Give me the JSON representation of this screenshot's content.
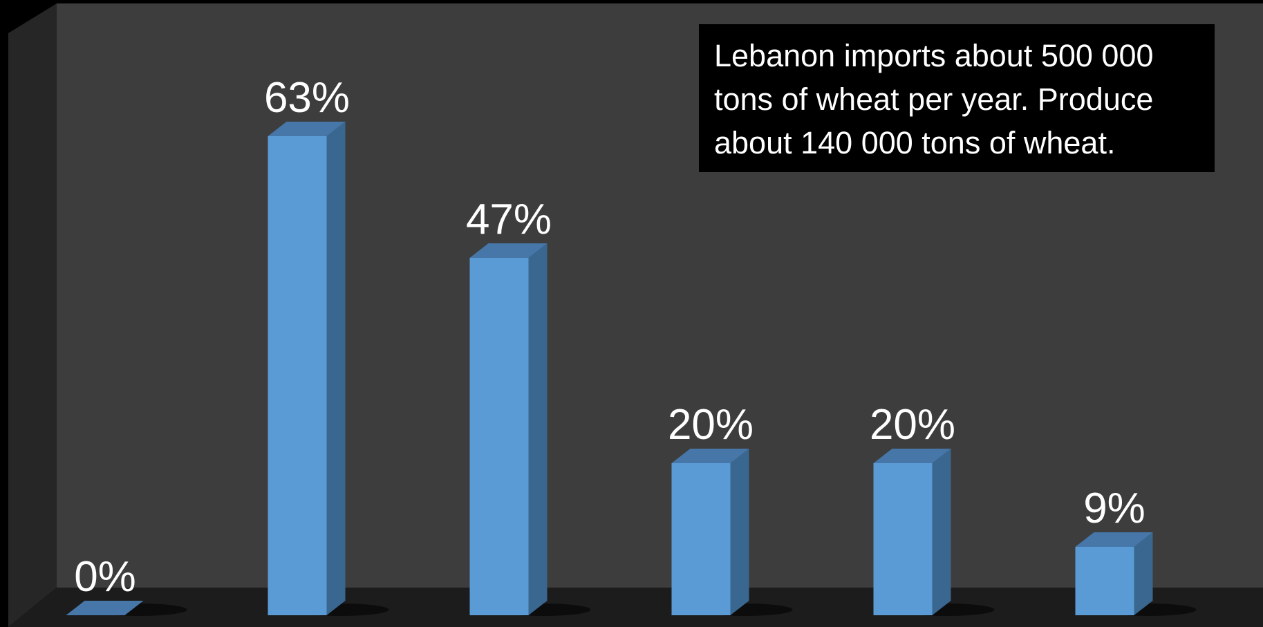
{
  "chart_data": {
    "type": "bar",
    "style": "3d-columns",
    "categories": [
      "",
      "",
      "",
      "",
      "",
      ""
    ],
    "values": [
      0,
      63,
      47,
      20,
      20,
      9
    ],
    "data_labels": [
      "0%",
      "63%",
      "47%",
      "20%",
      "20%",
      "9%"
    ],
    "ylim": [
      0,
      70
    ],
    "unit": "%",
    "title": "",
    "xlabel": "",
    "ylabel": "",
    "grid": false,
    "legend": false
  },
  "annotation": {
    "text": "Lebanon imports about 500 000 tons of wheat per year. Produce about 140 000 tons of wheat."
  },
  "colors": {
    "background": "#000000",
    "wall_back": "#3d3d3d",
    "wall_side": "#262626",
    "floor": "#1c1c1c",
    "bar_front": "#5b9bd5",
    "bar_side": "#3a6790",
    "bar_top": "#4677a8",
    "label": "#ffffff",
    "annotation_box": "#000000",
    "annotation_text": "#ffffff"
  }
}
